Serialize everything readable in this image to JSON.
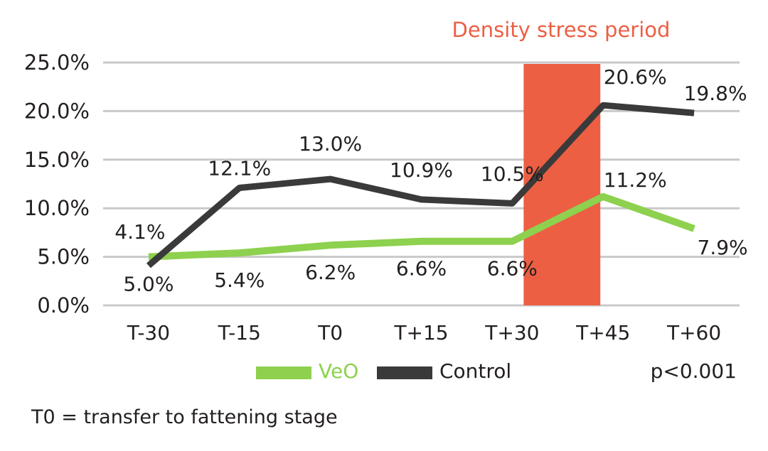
{
  "chart_data": {
    "type": "line",
    "categories": [
      "T-30",
      "T-15",
      "T0",
      "T+15",
      "T+30",
      "T+45",
      "T+60"
    ],
    "y_ticks": [
      "0.0%",
      "5.0%",
      "10.0%",
      "15.0%",
      "20.0%",
      "25.0%"
    ],
    "ylim": [
      0,
      25
    ],
    "grid": true,
    "series": [
      {
        "name": "VeO",
        "color": "#8dd14e",
        "values": [
          5.0,
          5.4,
          6.2,
          6.6,
          6.6,
          11.2,
          7.9
        ],
        "labels": [
          "5.0%",
          "5.4%",
          "6.2%",
          "6.6%",
          "6.6%",
          "11.2%",
          "7.9%"
        ]
      },
      {
        "name": "Control",
        "color": "#3a3a3a",
        "values": [
          4.1,
          12.1,
          13.0,
          10.9,
          10.5,
          20.6,
          19.8
        ],
        "labels": [
          "4.1%",
          "12.1%",
          "13.0%",
          "10.9%",
          "10.5%",
          "20.6%",
          "19.8%"
        ]
      }
    ],
    "highlight": {
      "label": "Density stress period",
      "from_category": "T+30",
      "to_category": "T+45",
      "color": "#ec5f43"
    },
    "legend_position": "bottom",
    "annotation_significance": "p<0.001",
    "footnote": "T0 = transfer to fattening stage"
  }
}
